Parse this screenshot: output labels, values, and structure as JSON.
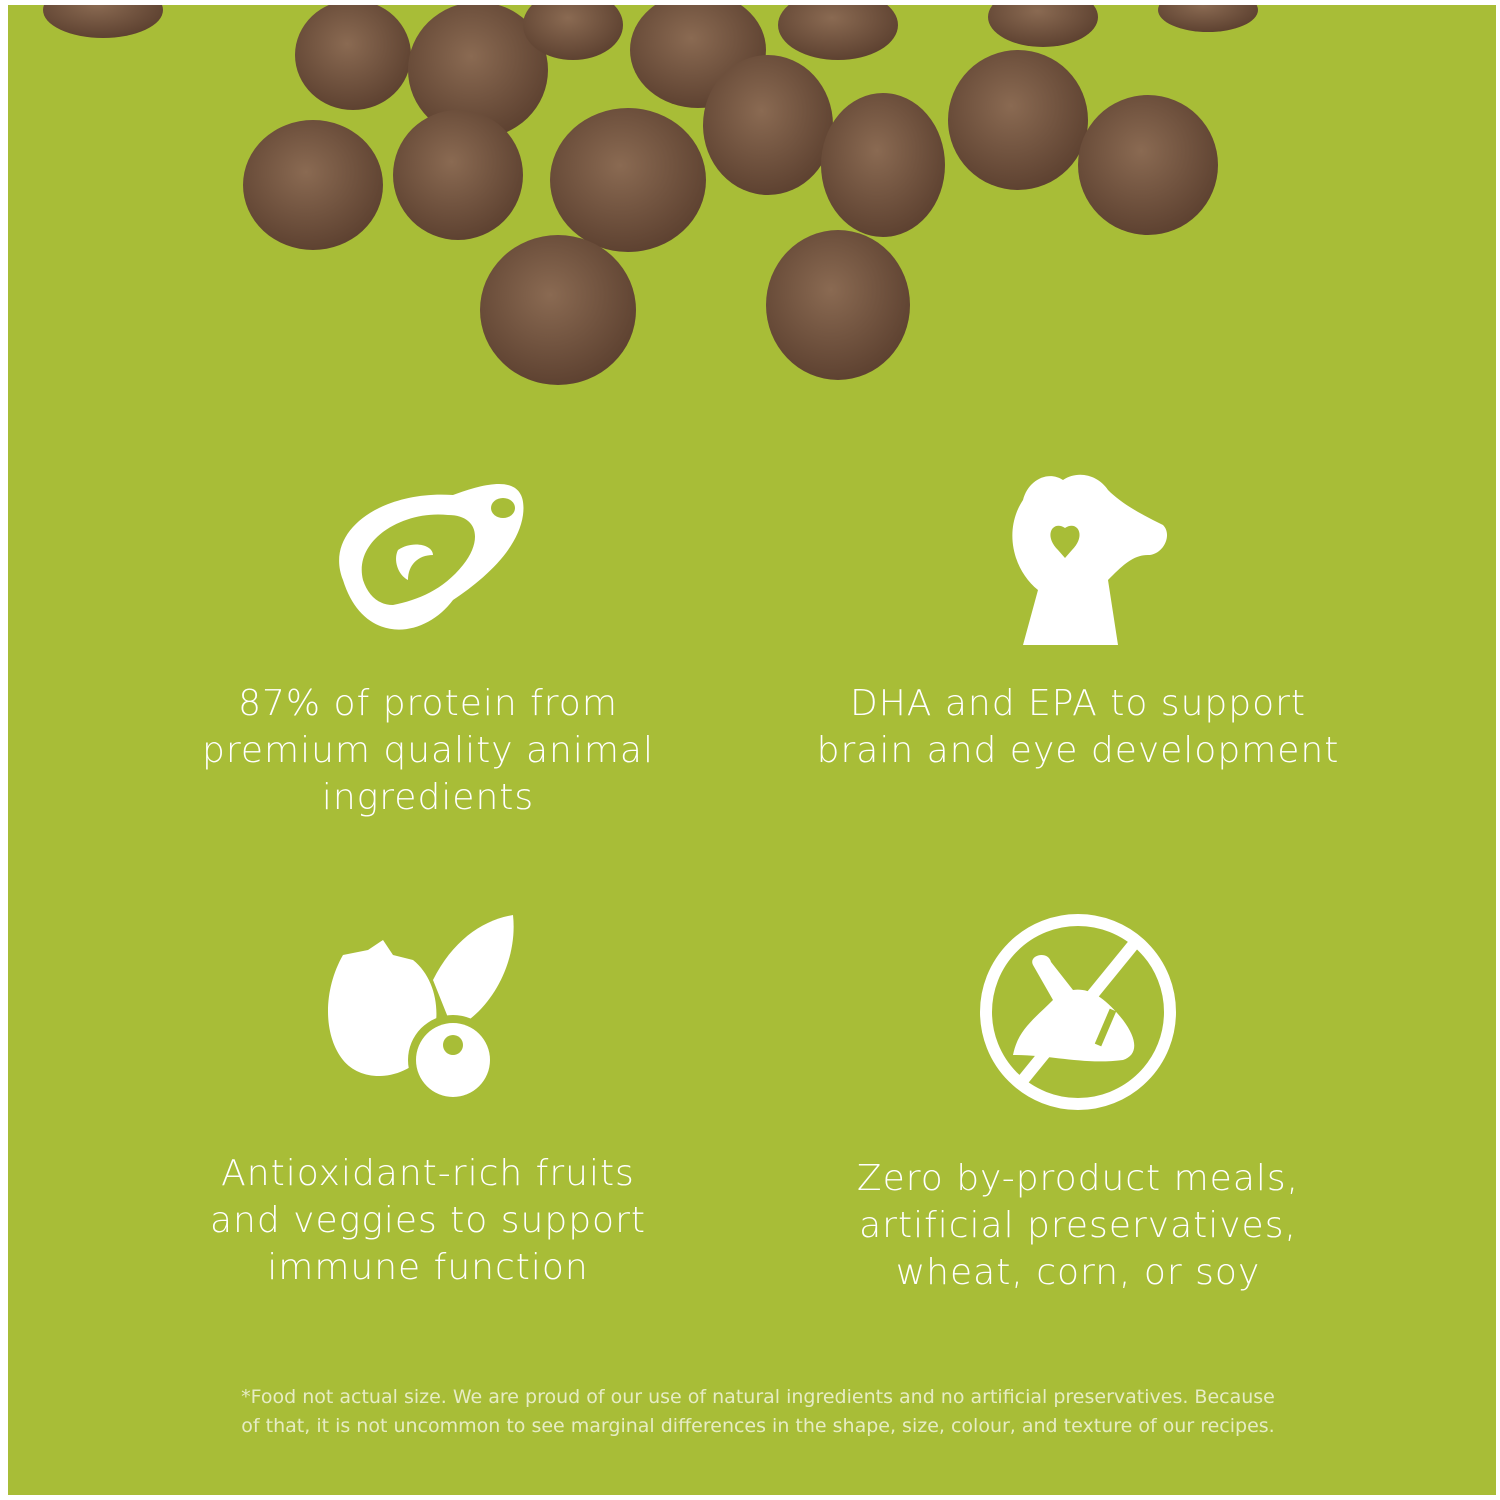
{
  "colors": {
    "background": "#a8bd37",
    "kibble": "#7a5a44",
    "text": "#ffffff"
  },
  "features": [
    {
      "icon": "steak-icon",
      "lines": [
        "87% of protein from",
        "premium quality animal",
        "ingredients"
      ]
    },
    {
      "icon": "dog-heart-icon",
      "lines": [
        "DHA and EPA to support",
        "brain and eye development"
      ]
    },
    {
      "icon": "fruit-veggie-icon",
      "lines": [
        "Antioxidant-rich fruits",
        "and veggies to support",
        "immune function"
      ]
    },
    {
      "icon": "no-byproduct-icon",
      "lines": [
        "Zero by-product meals,",
        "artificial preservatives,",
        "wheat, corn, or soy"
      ]
    }
  ],
  "footnote": {
    "lines": [
      "*Food not actual size. We are proud of our use of natural ingredients and no artificial preservatives. Because",
      "of that, it is not uncommon to see marginal differences in the shape, size, colour, and texture of our recipes."
    ]
  }
}
